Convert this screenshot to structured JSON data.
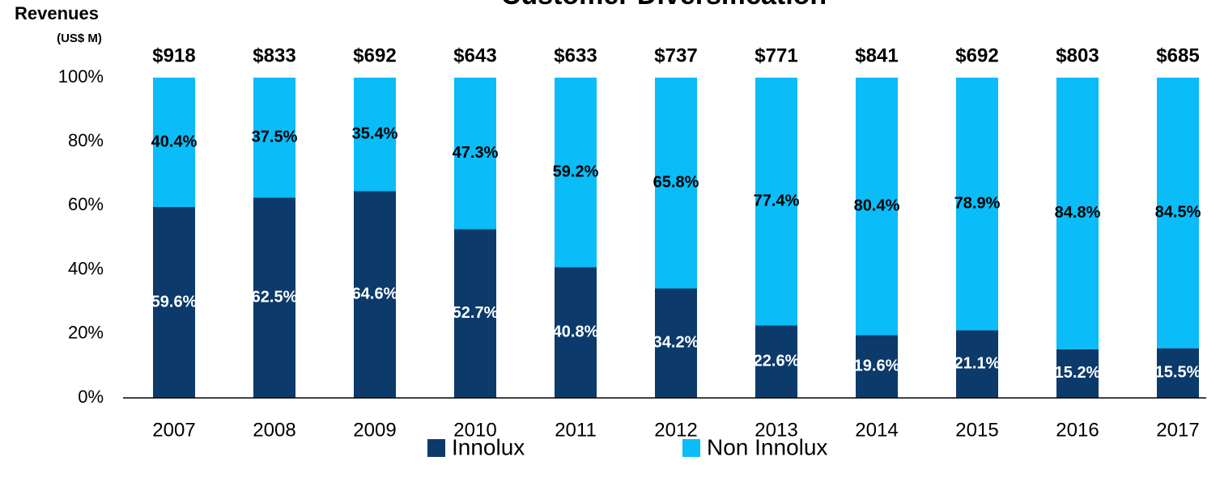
{
  "chart_data": {
    "type": "stacked_bar_percent",
    "title": "Customer Diversification",
    "y_axis_label": "Revenues",
    "y_axis_sublabel": "(US$ M)",
    "categories": [
      "2007",
      "2008",
      "2009",
      "2010",
      "2011",
      "2012",
      "2013",
      "2014",
      "2015",
      "2016",
      "2017"
    ],
    "series": [
      {
        "name": "Innolux",
        "color": "#0b3a6b",
        "label_color": "#ffffff",
        "values": [
          59.6,
          62.5,
          64.6,
          52.7,
          40.8,
          34.2,
          22.6,
          19.6,
          21.1,
          15.2,
          15.5
        ],
        "value_labels": [
          "59.6%",
          "62.5%",
          "64.6%",
          "52.7%",
          "40.8%",
          "34.2%",
          "22.6%",
          "19.6%",
          "21.1%",
          "15.2%",
          "15.5%"
        ]
      },
      {
        "name": "Non Innolux",
        "color": "#0abcf7",
        "label_color": "#000000",
        "values": [
          40.4,
          37.5,
          35.4,
          47.3,
          59.2,
          65.8,
          77.4,
          80.4,
          78.9,
          84.8,
          84.5
        ],
        "value_labels": [
          "40.4%",
          "37.5%",
          "35.4%",
          "47.3%",
          "59.2%",
          "65.8%",
          "77.4%",
          "80.4%",
          "78.9%",
          "84.8%",
          "84.5%"
        ]
      }
    ],
    "totals": [
      918,
      833,
      692,
      643,
      633,
      737,
      771,
      841,
      692,
      803,
      685
    ],
    "totals_labels": [
      "$918",
      "$833",
      "$692",
      "$643",
      "$633",
      "$737",
      "$771",
      "$841",
      "$692",
      "$803",
      "$685"
    ],
    "ylim": [
      0,
      100
    ],
    "yticks": [
      {
        "value": 0,
        "label": "0%"
      },
      {
        "value": 20,
        "label": "20%"
      },
      {
        "value": 40,
        "label": "40%"
      },
      {
        "value": 60,
        "label": "60%"
      },
      {
        "value": 80,
        "label": "80%"
      },
      {
        "value": 100,
        "label": "100%"
      }
    ],
    "legend": "bottom"
  }
}
